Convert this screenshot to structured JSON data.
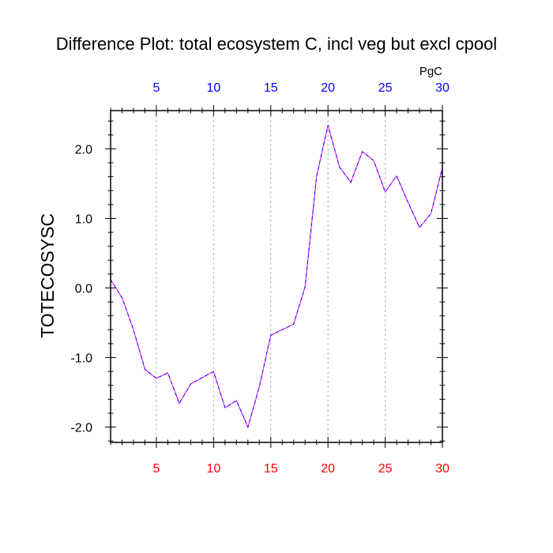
{
  "chart_data": {
    "type": "line",
    "title": "Difference Plot: total ecosystem C, incl veg but excl cpool",
    "units": "PgC",
    "ylabel": "TOTECOSYSC",
    "xlabel": "",
    "xlim": [
      1,
      30
    ],
    "ylim": [
      -2.22,
      2.55
    ],
    "x_ticks": [
      5,
      10,
      15,
      20,
      25,
      30
    ],
    "x_tick_labels": [
      "5",
      "10",
      "15",
      "20",
      "25",
      "30"
    ],
    "y_ticks": [
      -2.0,
      -1.0,
      0.0,
      1.0,
      2.0
    ],
    "y_tick_labels": [
      "-2.0",
      "-1.0",
      "0.0",
      "1.0",
      "2.0"
    ],
    "grid": "vertical dashed at major x ticks",
    "colors": {
      "top_axis_labels": "#0000ff",
      "bottom_axis_labels": "#ff0000",
      "line_dash_a": "#0000ff",
      "line_dash_b": "#ff00ff",
      "grid": "#b4b4b4"
    },
    "series": [
      {
        "x": [
          1,
          2,
          3,
          4,
          5,
          6,
          7,
          8,
          9,
          10,
          11,
          12,
          13,
          14,
          15,
          16,
          17,
          18,
          19,
          20,
          21,
          22,
          23,
          24,
          25,
          26,
          27,
          28,
          29,
          30
        ],
        "values": [
          0.12,
          -0.14,
          -0.6,
          -1.17,
          -1.3,
          -1.22,
          -1.66,
          -1.38,
          -1.29,
          -1.2,
          -1.72,
          -1.62,
          -2.0,
          -1.42,
          -0.68,
          -0.6,
          -0.52,
          0.02,
          1.6,
          2.34,
          1.74,
          1.52,
          1.96,
          1.83,
          1.38,
          1.61,
          1.23,
          0.87,
          1.07,
          1.73
        ]
      }
    ]
  }
}
